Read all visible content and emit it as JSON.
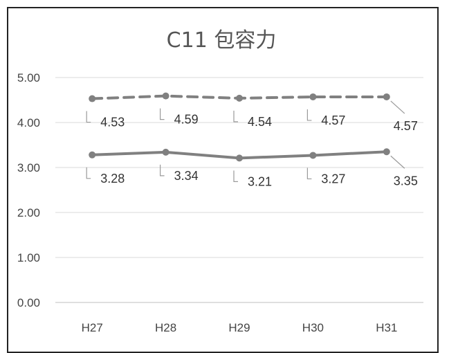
{
  "chart_data": {
    "type": "line",
    "title": "C11 包容力",
    "categories": [
      "H27",
      "H28",
      "H29",
      "H30",
      "H31"
    ],
    "y_ticks": [
      "0.00",
      "1.00",
      "2.00",
      "3.00",
      "4.00",
      "5.00"
    ],
    "ylim": [
      0,
      5
    ],
    "grid": true,
    "series": [
      {
        "style": "dashed",
        "color": "#808080",
        "values": [
          4.53,
          4.59,
          4.54,
          4.57,
          4.57
        ],
        "labels": [
          "4.53",
          "4.59",
          "4.54",
          "4.57",
          "4.57"
        ]
      },
      {
        "style": "solid",
        "color": "#808080",
        "values": [
          3.28,
          3.34,
          3.21,
          3.27,
          3.35
        ],
        "labels": [
          "3.28",
          "3.34",
          "3.21",
          "3.27",
          "3.35"
        ]
      }
    ]
  }
}
